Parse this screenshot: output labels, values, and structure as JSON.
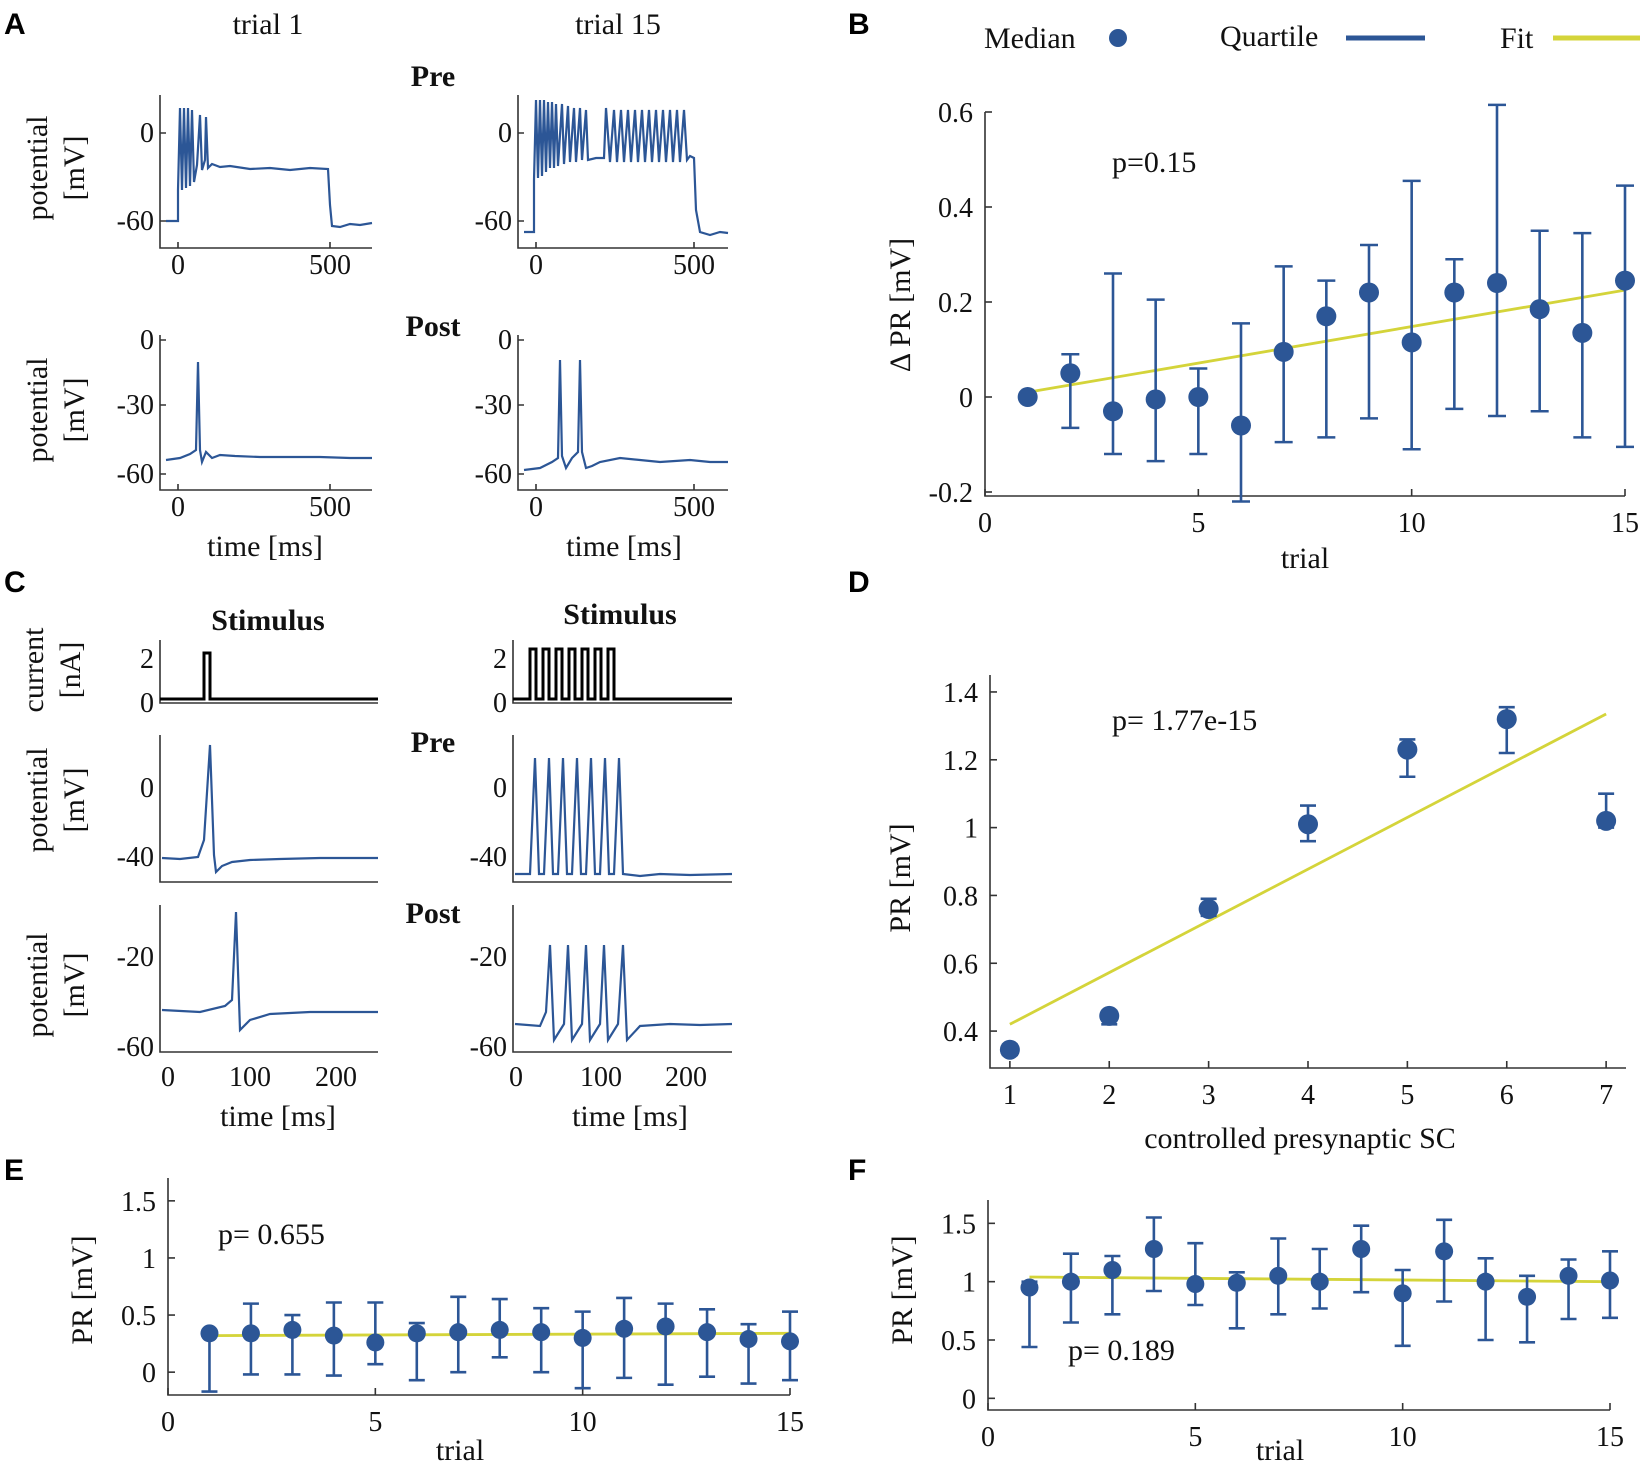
{
  "colors": {
    "blue": "#2c5696",
    "fit": "#d4d43a",
    "black": "#000000"
  },
  "panel_labels": {
    "A": "A",
    "B": "B",
    "C": "C",
    "D": "D",
    "E": "E",
    "F": "F"
  },
  "panelA": {
    "col1_title": "trial 1",
    "col2_title": "trial 15",
    "row1_label": "Pre",
    "row2_label": "Post",
    "ylabel_line1": "potential",
    "ylabel_line2": "[mV]",
    "xlabel": "time [ms]",
    "pre_yticks": [
      "0",
      "-60"
    ],
    "post_yticks": [
      "0",
      "-30",
      "-60"
    ],
    "xticks": [
      "0",
      "500"
    ]
  },
  "panelC": {
    "stim_title_1": "Stimulus",
    "stim_title_2": "Stimulus",
    "pre_label": "Pre",
    "post_label": "Post",
    "current_label_1": "current",
    "current_label_2": "[nA]",
    "ylabel_line1": "potential",
    "ylabel_line2": "[mV]",
    "stim_yticks": [
      "2",
      "0"
    ],
    "pre_yticks": [
      "0",
      "-40"
    ],
    "post_yticks": [
      "-20",
      "-60"
    ],
    "xticks": [
      "0",
      "100",
      "200"
    ],
    "xlabel": "time [ms]"
  },
  "legend": {
    "median": "Median",
    "quartile": "Quartile",
    "fit": "Fit"
  },
  "chart_data": [
    {
      "panel": "B",
      "type": "scatter",
      "title": "",
      "xlabel": "trial",
      "ylabel": "Δ PR [mV]",
      "annotation": "p=0.15",
      "xlim": [
        0,
        15
      ],
      "ylim": [
        -0.2,
        0.6
      ],
      "xticks": [
        "0",
        "5",
        "10",
        "15"
      ],
      "yticks": [
        "0.6",
        "0.4",
        "0.2",
        "0",
        "-0.2"
      ],
      "x": [
        1,
        2,
        3,
        4,
        5,
        6,
        7,
        8,
        9,
        10,
        11,
        12,
        13,
        14,
        15
      ],
      "median": [
        0.0,
        0.05,
        -0.03,
        -0.005,
        0.0,
        -0.06,
        0.095,
        0.17,
        0.22,
        0.115,
        0.22,
        0.24,
        0.185,
        0.135,
        0.245
      ],
      "q_low": [
        0.0,
        -0.065,
        -0.12,
        -0.135,
        -0.12,
        -0.22,
        -0.095,
        -0.085,
        -0.045,
        -0.11,
        -0.025,
        -0.04,
        -0.03,
        -0.085,
        -0.105
      ],
      "q_high": [
        0.0,
        0.09,
        0.26,
        0.205,
        0.06,
        0.155,
        0.275,
        0.245,
        0.32,
        0.455,
        0.29,
        0.615,
        0.35,
        0.345,
        0.445
      ],
      "fit": {
        "x": [
          1,
          15
        ],
        "y": [
          0.01,
          0.225
        ]
      }
    },
    {
      "panel": "D",
      "type": "scatter",
      "title": "",
      "xlabel": "controlled presynaptic SC",
      "ylabel": "PR [mV]",
      "annotation": "p= 1.77e-15",
      "xlim": [
        0.8,
        7.2
      ],
      "ylim": [
        0.3,
        1.45
      ],
      "xticks": [
        "1",
        "2",
        "3",
        "4",
        "5",
        "6",
        "7"
      ],
      "yticks": [
        "1.4",
        "1.2",
        "1",
        "0.8",
        "0.6",
        "0.4"
      ],
      "x": [
        1,
        2,
        3,
        4,
        5,
        6,
        7
      ],
      "median": [
        0.345,
        0.445,
        0.76,
        1.01,
        1.23,
        1.32,
        1.02
      ],
      "q_low": [
        0.33,
        0.42,
        0.74,
        0.96,
        1.15,
        1.22,
        1.0
      ],
      "q_high": [
        0.36,
        0.46,
        0.79,
        1.065,
        1.26,
        1.355,
        1.1
      ],
      "fit": {
        "x": [
          1,
          7
        ],
        "y": [
          0.42,
          1.335
        ]
      }
    },
    {
      "panel": "E",
      "type": "scatter",
      "title": "",
      "xlabel": "trial",
      "ylabel": "PR [mV]",
      "annotation": "p= 0.655",
      "xlim": [
        0,
        15
      ],
      "ylim": [
        -0.2,
        1.7
      ],
      "xticks": [
        "0",
        "5",
        "10",
        "15"
      ],
      "yticks": [
        "1.5",
        "1",
        "0.5",
        "0"
      ],
      "x": [
        1,
        2,
        3,
        4,
        5,
        6,
        7,
        8,
        9,
        10,
        11,
        12,
        13,
        14,
        15
      ],
      "median": [
        0.34,
        0.34,
        0.37,
        0.32,
        0.26,
        0.34,
        0.35,
        0.37,
        0.35,
        0.3,
        0.38,
        0.4,
        0.35,
        0.29,
        0.27
      ],
      "q_low": [
        -0.17,
        -0.02,
        -0.02,
        -0.03,
        0.07,
        -0.07,
        0.0,
        0.13,
        0.0,
        -0.14,
        -0.05,
        -0.11,
        -0.04,
        -0.1,
        -0.07
      ],
      "q_high": [
        0.34,
        0.6,
        0.5,
        0.61,
        0.61,
        0.43,
        0.66,
        0.64,
        0.56,
        0.53,
        0.65,
        0.6,
        0.55,
        0.42,
        0.53
      ],
      "fit": {
        "x": [
          1,
          15
        ],
        "y": [
          0.32,
          0.34
        ]
      }
    },
    {
      "panel": "F",
      "type": "scatter",
      "title": "",
      "xlabel": "trial",
      "ylabel": "PR [mV]",
      "annotation": "p= 0.189",
      "xlim": [
        0,
        15
      ],
      "ylim": [
        -0.1,
        1.7
      ],
      "xticks": [
        "0",
        "5",
        "10",
        "15"
      ],
      "yticks": [
        "1.5",
        "1",
        "0.5",
        "0"
      ],
      "x": [
        1,
        2,
        3,
        4,
        5,
        6,
        7,
        8,
        9,
        10,
        11,
        12,
        13,
        14,
        15
      ],
      "median": [
        0.95,
        1.0,
        1.1,
        1.28,
        0.98,
        0.99,
        1.05,
        1.0,
        1.28,
        0.9,
        1.26,
        1.0,
        0.87,
        1.05,
        1.01
      ],
      "q_low": [
        0.44,
        0.65,
        0.72,
        0.92,
        0.8,
        0.6,
        0.72,
        0.77,
        0.91,
        0.45,
        0.83,
        0.5,
        0.48,
        0.68,
        0.69
      ],
      "q_high": [
        1.0,
        1.24,
        1.22,
        1.55,
        1.33,
        1.08,
        1.37,
        1.28,
        1.48,
        1.1,
        1.53,
        1.2,
        1.05,
        1.19,
        1.26
      ],
      "fit": {
        "x": [
          1,
          15
        ],
        "y": [
          1.04,
          1.0
        ]
      }
    }
  ]
}
